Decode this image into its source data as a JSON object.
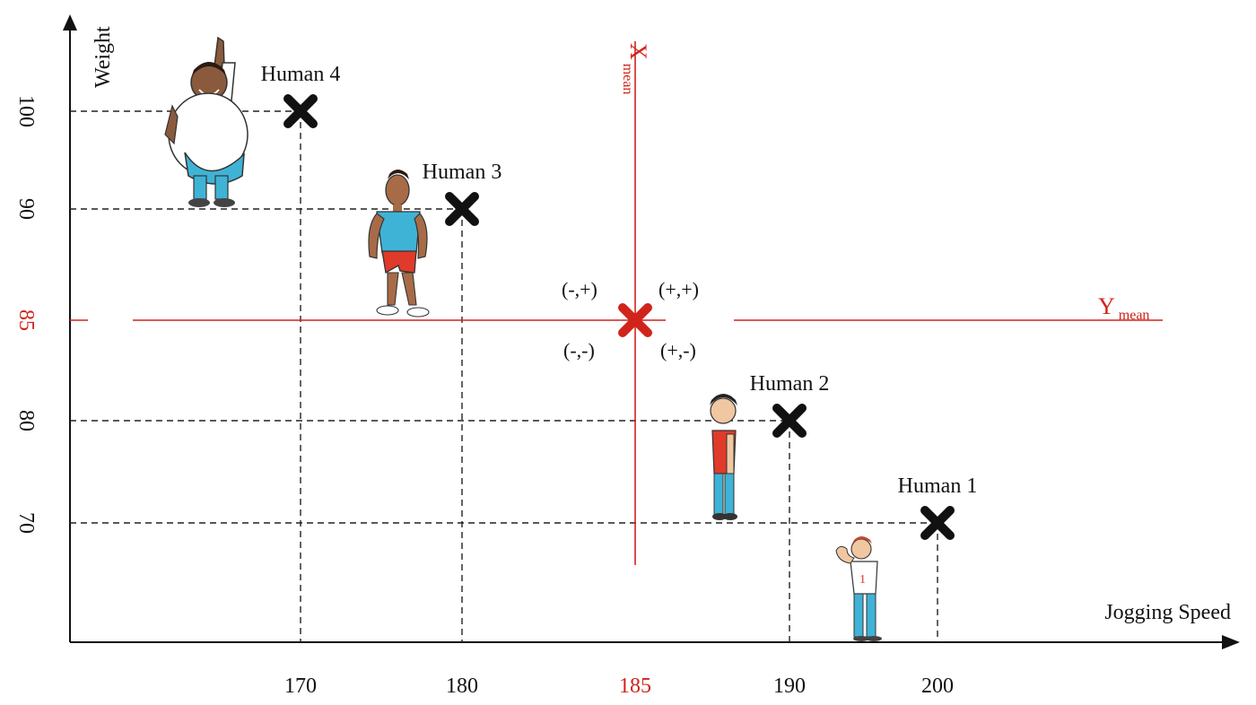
{
  "axes": {
    "x_label": "Jogging Speed",
    "y_label": "Weight"
  },
  "chart_data": {
    "type": "scatter",
    "x": [
      200,
      190,
      180,
      170
    ],
    "y": [
      70,
      80,
      90,
      100
    ],
    "point_labels": [
      "Human 1",
      "Human 2",
      "Human 3",
      "Human 4"
    ],
    "x_ticks": [
      "170",
      "180",
      "185",
      "190",
      "200"
    ],
    "y_ticks": [
      "70",
      "80",
      "85",
      "90",
      "100"
    ],
    "mean": {
      "x": 185,
      "y": 85
    },
    "xlabel": "Jogging Speed",
    "ylabel": "Weight"
  },
  "mean_labels": {
    "x_main": "X",
    "x_sub": "mean",
    "y_main": "Y",
    "y_sub": "mean"
  },
  "quadrants": {
    "top_left": "(-,+)",
    "top_right": "(+,+)",
    "bottom_left": "(-,-)",
    "bottom_right": "(+,-)"
  },
  "colors": {
    "axis": "#111111",
    "mean": "#d0241b",
    "point": "#111111"
  },
  "illustrations": [
    "overweight-man-pointing-up",
    "muscular-man-in-tank-top",
    "boy-in-red-shirt",
    "man-flexing-arm"
  ]
}
